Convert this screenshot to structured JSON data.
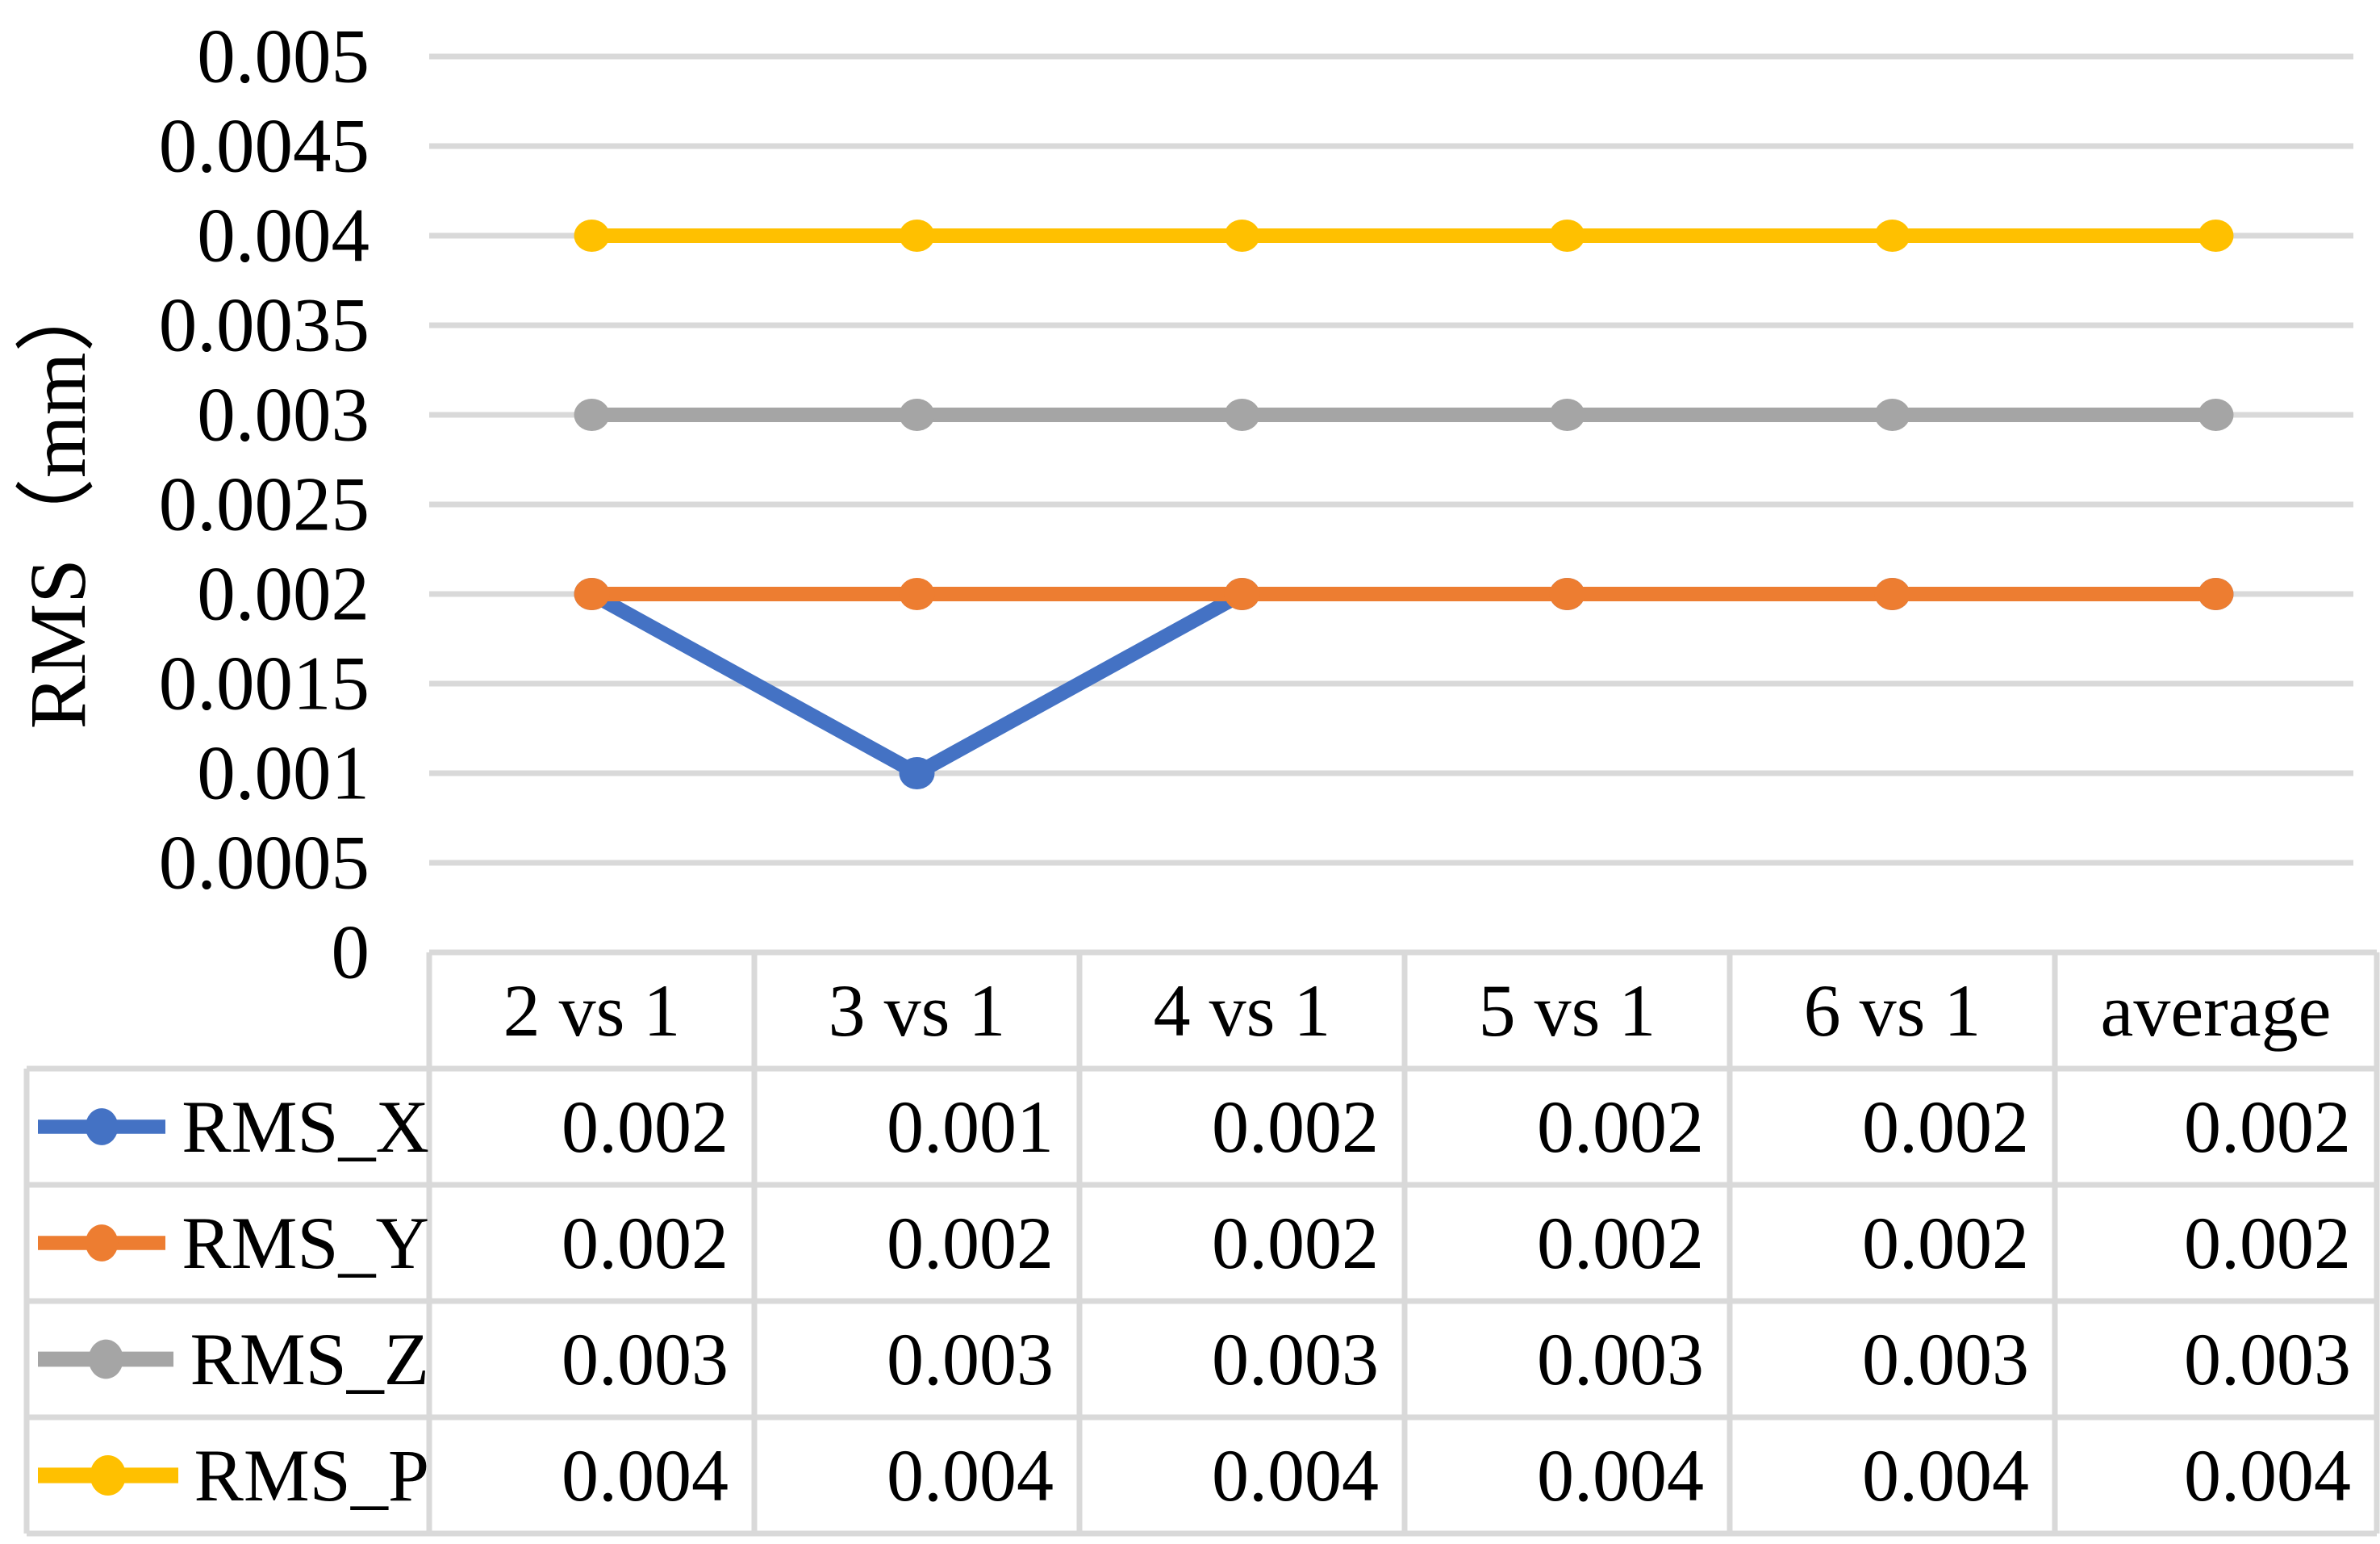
{
  "chart_data": {
    "type": "line",
    "title": "",
    "xlabel": "",
    "ylabel": "RMS（mm）",
    "categories": [
      "2 vs 1",
      "3 vs 1",
      "4 vs 1",
      "5 vs 1",
      "6 vs 1",
      "average"
    ],
    "series": [
      {
        "name": "RMS_X",
        "color": "#4472C4",
        "values": [
          0.002,
          0.001,
          0.002,
          0.002,
          0.002,
          0.002
        ],
        "display": [
          "0.002",
          "0.001",
          "0.002",
          "0.002",
          "0.002",
          "0.002"
        ]
      },
      {
        "name": "RMS_Y",
        "color": "#ED7D31",
        "values": [
          0.002,
          0.002,
          0.002,
          0.002,
          0.002,
          0.002
        ],
        "display": [
          "0.002",
          "0.002",
          "0.002",
          "0.002",
          "0.002",
          "0.002"
        ]
      },
      {
        "name": "RMS_Z",
        "color": "#A5A5A5",
        "values": [
          0.003,
          0.003,
          0.003,
          0.003,
          0.003,
          0.003
        ],
        "display": [
          "0.003",
          "0.003",
          "0.003",
          "0.003",
          "0.003",
          "0.003"
        ]
      },
      {
        "name": "RMS_P",
        "color": "#FFC000",
        "values": [
          0.004,
          0.004,
          0.004,
          0.004,
          0.004,
          0.004
        ],
        "display": [
          "0.004",
          "0.004",
          "0.004",
          "0.004",
          "0.004",
          "0.004"
        ]
      }
    ],
    "ylim": [
      0,
      0.005
    ],
    "ytick_values": [
      0.005,
      0.0045,
      0.004,
      0.0035,
      0.003,
      0.0025,
      0.002,
      0.0015,
      0.001,
      0.0005,
      0
    ],
    "ytick_labels": [
      "0.005",
      "0.0045",
      "0.004",
      "0.0035",
      "0.003",
      "0.0025",
      "0.002",
      "0.0015",
      "0.001",
      "0.0005",
      "0"
    ],
    "grid": true,
    "legend_position": "table-left-column",
    "gridline_color": "#D9D9D9",
    "table_border_color": "#D9D9D9",
    "text_color": "#000000",
    "marker_style": "circle"
  }
}
